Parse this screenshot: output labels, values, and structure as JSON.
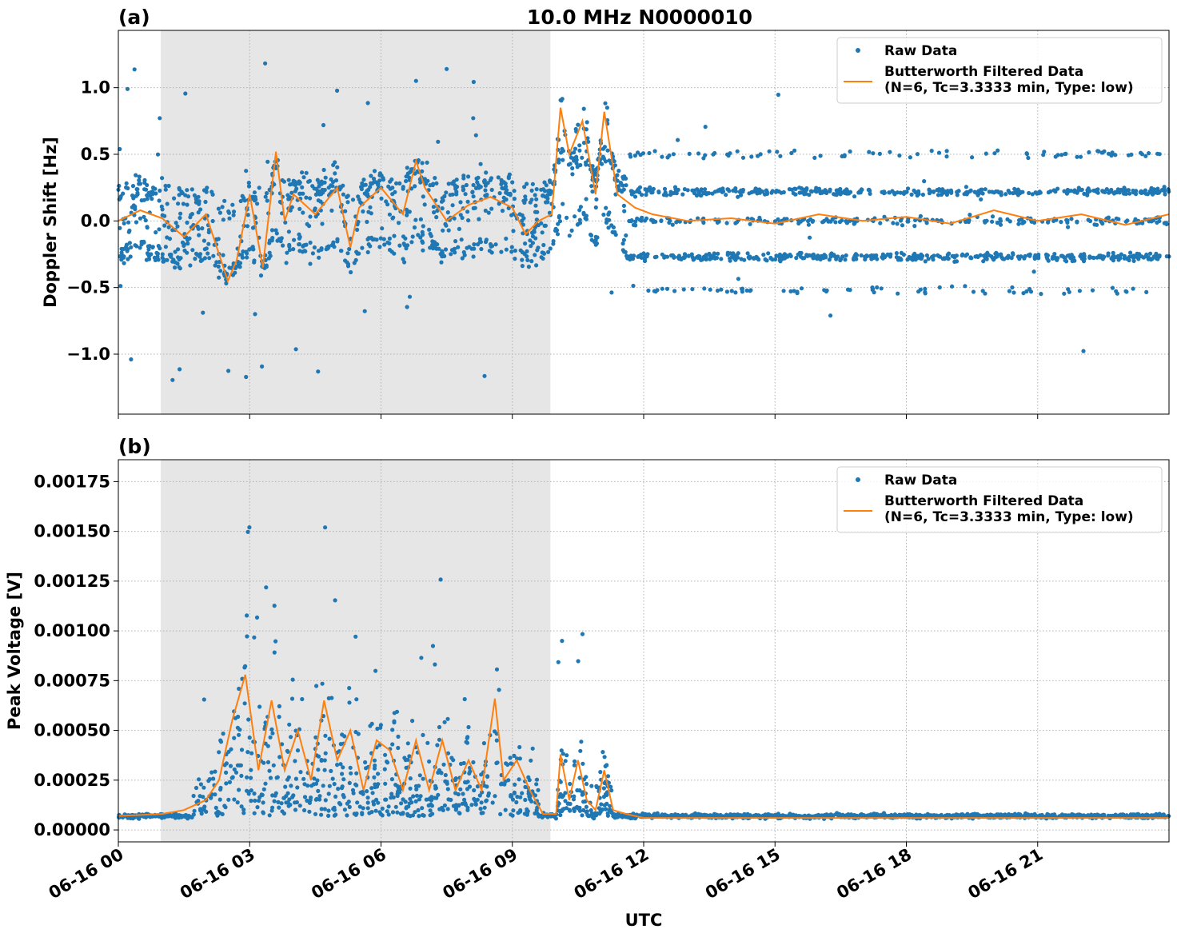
{
  "figure": {
    "title": "10.0 MHz N0000010",
    "xlabel": "UTC"
  },
  "chart_data": [
    {
      "type": "scatter",
      "panel_label": "(a)",
      "title": "10.0 MHz N0000010",
      "xlabel": "UTC",
      "ylabel": "Doppler Shift [Hz]",
      "xlim": [
        0,
        24
      ],
      "ylim": [
        -1.45,
        1.43
      ],
      "xticks": [
        0,
        3,
        6,
        9,
        12,
        15,
        18,
        21
      ],
      "xtick_labels": [
        "06-16 00",
        "06-16 03",
        "06-16 06",
        "06-16 09",
        "06-16 12",
        "06-16 15",
        "06-16 18",
        "06-16 21"
      ],
      "yticks": [
        -1.0,
        -0.5,
        0.0,
        0.5,
        1.0
      ],
      "ytick_labels": [
        "−1.0",
        "−0.5",
        "0.0",
        "0.5",
        "1.0"
      ],
      "grid": true,
      "shaded_interval_hours": [
        0.97,
        9.87
      ],
      "legend": {
        "placement": "top-right",
        "entries": [
          "Raw Data",
          "Butterworth Filtered Data\n(N=6, Tc=3.3333 min, Type: low)"
        ]
      },
      "series": [
        {
          "name": "Raw Data",
          "kind": "scatter",
          "color": "#1f77b4",
          "description_values": {
            "bands_after_12h": [
              0.5,
              0.22,
              0.0,
              -0.27,
              -0.52
            ],
            "max": 1.3,
            "min": -1.3
          }
        },
        {
          "name": "Butterworth Filtered Data\n(N=6, Tc=3.3333 min, Type: low)",
          "kind": "line",
          "color": "#ff7f0e",
          "x": [
            0,
            0.5,
            1.0,
            1.5,
            2.0,
            2.5,
            2.7,
            3.0,
            3.3,
            3.6,
            3.8,
            4.0,
            4.5,
            5.0,
            5.3,
            5.5,
            6.0,
            6.5,
            6.8,
            7.0,
            7.5,
            8.0,
            8.5,
            9.0,
            9.3,
            9.6,
            9.9,
            10.1,
            10.3,
            10.6,
            10.9,
            11.1,
            11.4,
            11.8,
            12.2,
            13,
            14,
            15,
            16,
            17,
            18,
            19,
            20,
            21,
            22,
            23,
            24
          ],
          "y": [
            0.0,
            0.08,
            0.02,
            -0.12,
            0.05,
            -0.45,
            -0.3,
            0.2,
            -0.35,
            0.52,
            0.0,
            0.2,
            0.05,
            0.25,
            -0.2,
            0.1,
            0.25,
            0.05,
            0.45,
            0.25,
            0.0,
            0.12,
            0.18,
            0.1,
            -0.1,
            0.0,
            0.05,
            0.85,
            0.5,
            0.75,
            0.2,
            0.82,
            0.2,
            0.1,
            0.05,
            0.0,
            0.02,
            -0.02,
            0.05,
            0.0,
            0.03,
            -0.02,
            0.08,
            0.0,
            0.05,
            -0.03,
            0.05
          ]
        }
      ]
    },
    {
      "type": "scatter",
      "panel_label": "(b)",
      "xlabel": "UTC",
      "ylabel": "Peak Voltage [V]",
      "xlim": [
        0,
        24
      ],
      "ylim": [
        -6e-05,
        0.00186
      ],
      "xticks": [
        0,
        3,
        6,
        9,
        12,
        15,
        18,
        21
      ],
      "xtick_labels": [
        "06-16 00",
        "06-16 03",
        "06-16 06",
        "06-16 09",
        "06-16 12",
        "06-16 15",
        "06-16 18",
        "06-16 21"
      ],
      "yticks": [
        0.0,
        0.00025,
        0.0005,
        0.00075,
        0.001,
        0.00125,
        0.0015,
        0.00175
      ],
      "ytick_labels": [
        "0.00000",
        "0.00025",
        "0.00050",
        "0.00075",
        "0.00100",
        "0.00125",
        "0.00150",
        "0.00175"
      ],
      "grid": true,
      "shaded_interval_hours": [
        0.97,
        9.87
      ],
      "legend": {
        "placement": "top-right",
        "entries": [
          "Raw Data",
          "Butterworth Filtered Data\n(N=6, Tc=3.3333 min, Type: low)"
        ]
      },
      "series": [
        {
          "name": "Raw Data",
          "kind": "scatter",
          "color": "#1f77b4",
          "description_values": {
            "baseline": 7e-05,
            "max": 0.00175
          }
        },
        {
          "name": "Butterworth Filtered Data\n(N=6, Tc=3.3333 min, Type: low)",
          "kind": "line",
          "color": "#ff7f0e",
          "x": [
            0,
            1,
            1.5,
            2.0,
            2.3,
            2.6,
            2.9,
            3.2,
            3.5,
            3.8,
            4.1,
            4.4,
            4.7,
            5.0,
            5.3,
            5.6,
            5.9,
            6.2,
            6.5,
            6.8,
            7.1,
            7.4,
            7.7,
            8.0,
            8.3,
            8.6,
            8.8,
            9.1,
            9.4,
            9.7,
            10.0,
            10.1,
            10.3,
            10.5,
            10.7,
            10.9,
            11.1,
            11.3,
            11.6,
            12,
            14,
            16,
            18,
            20,
            22,
            24
          ],
          "y": [
            7e-05,
            8e-05,
            0.0001,
            0.00015,
            0.00025,
            0.00055,
            0.00078,
            0.0003,
            0.00065,
            0.0003,
            0.0005,
            0.00025,
            0.00065,
            0.00035,
            0.0005,
            0.0002,
            0.00045,
            0.0004,
            0.0002,
            0.00045,
            0.0002,
            0.00045,
            0.0002,
            0.00035,
            0.0002,
            0.00066,
            0.00025,
            0.00035,
            0.0002,
            8e-05,
            8e-05,
            0.00038,
            0.00015,
            0.00035,
            0.00015,
            0.0001,
            0.0003,
            0.0001,
            8e-05,
            6e-05,
            6e-05,
            6e-05,
            6e-05,
            6e-05,
            6e-05,
            6e-05
          ]
        }
      ]
    }
  ]
}
